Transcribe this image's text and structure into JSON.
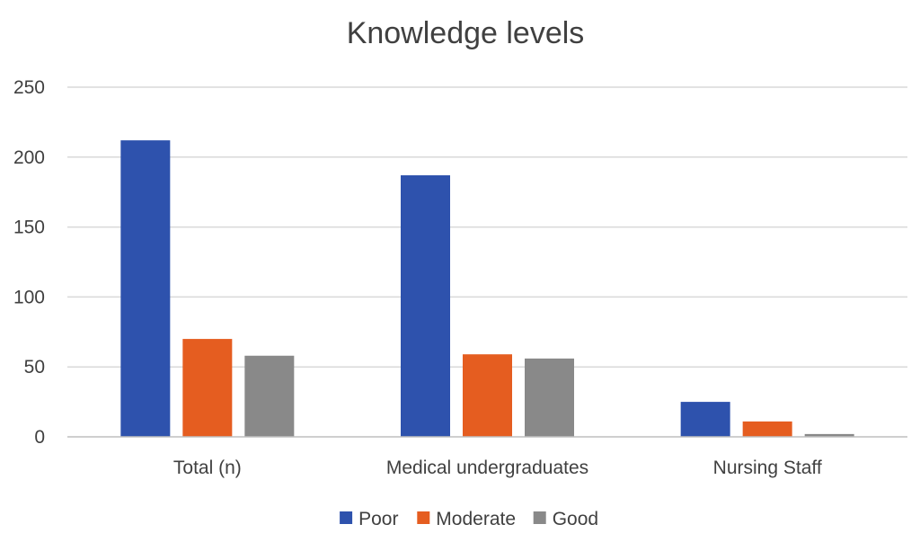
{
  "chart_data": {
    "type": "bar",
    "title": "Knowledge levels",
    "xlabel": "",
    "ylabel": "",
    "categories": [
      "Total (n)",
      "Medical undergraduates",
      "Nursing Staff"
    ],
    "series": [
      {
        "name": "Poor",
        "color": "#2e52ad",
        "values": [
          212,
          187,
          25
        ]
      },
      {
        "name": "Moderate",
        "color": "#e55d20",
        "values": [
          70,
          59,
          11
        ]
      },
      {
        "name": "Good",
        "color": "#898989",
        "values": [
          58,
          56,
          2
        ]
      }
    ],
    "ylim": [
      0,
      250
    ],
    "yticks": [
      "0",
      "50",
      "100",
      "150",
      "200",
      "250"
    ],
    "grid": true,
    "legend": "bottom"
  }
}
